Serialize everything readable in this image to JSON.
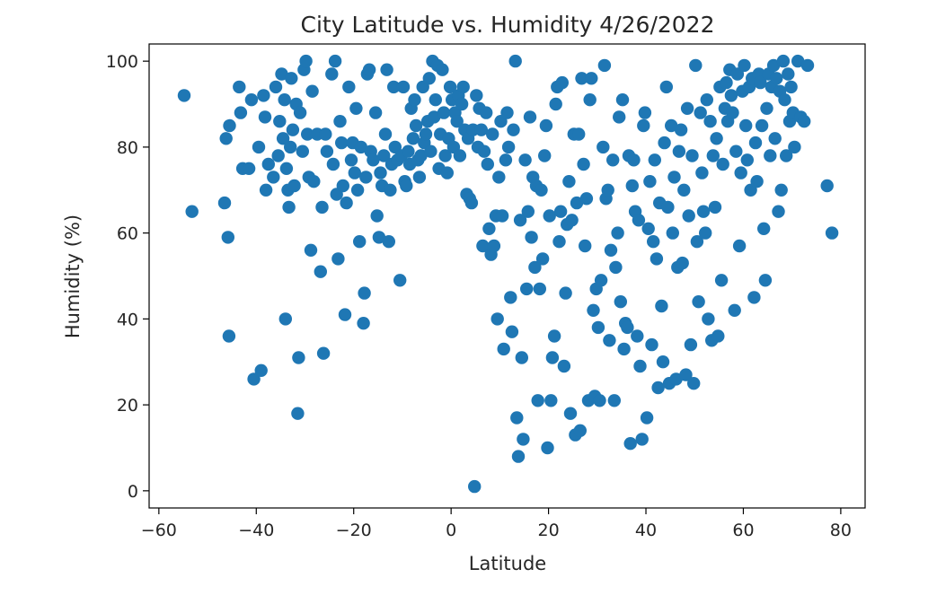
{
  "chart_data": {
    "type": "scatter",
    "title": "City Latitude vs. Humidity 4/26/2022",
    "xlabel": "Latitude",
    "ylabel": "Humidity (%)",
    "xlim": [
      -62,
      85
    ],
    "ylim": [
      -4,
      104
    ],
    "xticks": [
      -60,
      -40,
      -20,
      0,
      20,
      40,
      60,
      80
    ],
    "xtick_labels": [
      "−60",
      "−40",
      "−20",
      "0",
      "20",
      "40",
      "60",
      "80"
    ],
    "yticks": [
      0,
      20,
      40,
      60,
      80,
      100
    ],
    "ytick_labels": [
      "0",
      "20",
      "40",
      "60",
      "80",
      "100"
    ],
    "grid": false,
    "legend": "none",
    "marker_color": "#1f77b4",
    "points": [
      [
        -54.8,
        92
      ],
      [
        -53.2,
        65
      ],
      [
        -46.2,
        82
      ],
      [
        -46.5,
        67
      ],
      [
        -45.5,
        85
      ],
      [
        -45.8,
        59
      ],
      [
        -45.6,
        36
      ],
      [
        -43.5,
        94
      ],
      [
        -43.2,
        88
      ],
      [
        -42.8,
        75
      ],
      [
        -41.5,
        75
      ],
      [
        -41,
        91
      ],
      [
        -40.5,
        26
      ],
      [
        -39.5,
        80
      ],
      [
        -39,
        28
      ],
      [
        -38.5,
        92
      ],
      [
        -38.2,
        87
      ],
      [
        -38,
        70
      ],
      [
        -37.5,
        76
      ],
      [
        -36.5,
        73
      ],
      [
        -36,
        94
      ],
      [
        -35.5,
        78
      ],
      [
        -35.2,
        86
      ],
      [
        -34.8,
        97
      ],
      [
        -34.5,
        82
      ],
      [
        -34.2,
        91
      ],
      [
        -34,
        40
      ],
      [
        -33.8,
        75
      ],
      [
        -33.5,
        70
      ],
      [
        -33.3,
        66
      ],
      [
        -33,
        80
      ],
      [
        -32.8,
        96
      ],
      [
        -32.5,
        84
      ],
      [
        -32.2,
        71
      ],
      [
        -31.8,
        90
      ],
      [
        -31.5,
        18
      ],
      [
        -31.3,
        31
      ],
      [
        -31,
        88
      ],
      [
        -30.5,
        79
      ],
      [
        -30.2,
        98
      ],
      [
        -29.8,
        100
      ],
      [
        -29.5,
        83
      ],
      [
        -29.2,
        73
      ],
      [
        -28.8,
        56
      ],
      [
        -28.5,
        93
      ],
      [
        -28.2,
        72
      ],
      [
        -27.5,
        83
      ],
      [
        -26.8,
        51
      ],
      [
        -26.5,
        66
      ],
      [
        -26.2,
        32
      ],
      [
        -25.8,
        83
      ],
      [
        -25.5,
        79
      ],
      [
        -24.5,
        97
      ],
      [
        -24.2,
        76
      ],
      [
        -23.8,
        100
      ],
      [
        -23.5,
        69
      ],
      [
        -23.2,
        54
      ],
      [
        -22.8,
        86
      ],
      [
        -22.5,
        81
      ],
      [
        -22.2,
        71
      ],
      [
        -21.8,
        41
      ],
      [
        -21.5,
        67
      ],
      [
        -21,
        94
      ],
      [
        -20.5,
        77
      ],
      [
        -20.2,
        81
      ],
      [
        -19.8,
        74
      ],
      [
        -19.5,
        89
      ],
      [
        -19.2,
        70
      ],
      [
        -18.8,
        58
      ],
      [
        -18.5,
        80
      ],
      [
        -18,
        39
      ],
      [
        -17.8,
        46
      ],
      [
        -17.5,
        73
      ],
      [
        -17.2,
        97
      ],
      [
        -16.8,
        98
      ],
      [
        -16.5,
        79
      ],
      [
        -16,
        77
      ],
      [
        -15.5,
        88
      ],
      [
        -15.2,
        64
      ],
      [
        -14.8,
        59
      ],
      [
        -14.5,
        74
      ],
      [
        -14.2,
        71
      ],
      [
        -13.8,
        78
      ],
      [
        -13.5,
        83
      ],
      [
        -13.2,
        98
      ],
      [
        -12.8,
        58
      ],
      [
        -12.5,
        70
      ],
      [
        -12.2,
        76
      ],
      [
        -11.8,
        94
      ],
      [
        -11.5,
        80
      ],
      [
        -11,
        77
      ],
      [
        -10.5,
        49
      ],
      [
        -10.2,
        78
      ],
      [
        -9.8,
        94
      ],
      [
        -9.5,
        72
      ],
      [
        -9.2,
        71
      ],
      [
        -8.8,
        79
      ],
      [
        -8.5,
        76
      ],
      [
        -8.2,
        89
      ],
      [
        -7.8,
        82
      ],
      [
        -7.5,
        91
      ],
      [
        -7.2,
        85
      ],
      [
        -6.8,
        77
      ],
      [
        -6.5,
        73
      ],
      [
        -6.2,
        78
      ],
      [
        -5.8,
        94
      ],
      [
        -5.5,
        81
      ],
      [
        -5.2,
        83
      ],
      [
        -4.8,
        86
      ],
      [
        -4.5,
        96
      ],
      [
        -4.2,
        79
      ],
      [
        -3.8,
        100
      ],
      [
        -3.5,
        87
      ],
      [
        -3.2,
        91
      ],
      [
        -2.8,
        99
      ],
      [
        -2.5,
        75
      ],
      [
        -2.2,
        83
      ],
      [
        -1.8,
        98
      ],
      [
        -1.5,
        88
      ],
      [
        -1.2,
        78
      ],
      [
        -0.8,
        74
      ],
      [
        -0.5,
        82
      ],
      [
        -0.2,
        94
      ],
      [
        0.2,
        91
      ],
      [
        0.5,
        80
      ],
      [
        0.8,
        88
      ],
      [
        1.2,
        86
      ],
      [
        1.5,
        92
      ],
      [
        1.8,
        78
      ],
      [
        2.2,
        90
      ],
      [
        2.5,
        94
      ],
      [
        2.8,
        84
      ],
      [
        3.2,
        69
      ],
      [
        3.5,
        82
      ],
      [
        3.8,
        68
      ],
      [
        4.2,
        67
      ],
      [
        4.5,
        84
      ],
      [
        4.8,
        1
      ],
      [
        5.2,
        92
      ],
      [
        5.5,
        80
      ],
      [
        5.8,
        89
      ],
      [
        6.2,
        84
      ],
      [
        6.5,
        57
      ],
      [
        6.8,
        79
      ],
      [
        7.2,
        88
      ],
      [
        7.5,
        76
      ],
      [
        7.8,
        61
      ],
      [
        8.2,
        55
      ],
      [
        8.5,
        83
      ],
      [
        8.8,
        57
      ],
      [
        9.2,
        64
      ],
      [
        9.5,
        40
      ],
      [
        9.8,
        73
      ],
      [
        10.2,
        86
      ],
      [
        10.5,
        64
      ],
      [
        10.8,
        33
      ],
      [
        11.2,
        77
      ],
      [
        11.5,
        88
      ],
      [
        11.8,
        80
      ],
      [
        12.2,
        45
      ],
      [
        12.5,
        37
      ],
      [
        12.8,
        84
      ],
      [
        13.2,
        100
      ],
      [
        13.5,
        17
      ],
      [
        13.8,
        8
      ],
      [
        14.2,
        63
      ],
      [
        14.5,
        31
      ],
      [
        14.8,
        12
      ],
      [
        15.2,
        77
      ],
      [
        15.5,
        47
      ],
      [
        15.8,
        65
      ],
      [
        16.2,
        87
      ],
      [
        16.5,
        59
      ],
      [
        16.8,
        73
      ],
      [
        17.2,
        52
      ],
      [
        17.5,
        71
      ],
      [
        17.8,
        21
      ],
      [
        18.2,
        47
      ],
      [
        18.5,
        70
      ],
      [
        18.8,
        54
      ],
      [
        19.2,
        78
      ],
      [
        19.5,
        85
      ],
      [
        19.8,
        10
      ],
      [
        20.2,
        64
      ],
      [
        20.5,
        21
      ],
      [
        20.8,
        31
      ],
      [
        21.2,
        36
      ],
      [
        21.5,
        90
      ],
      [
        21.8,
        94
      ],
      [
        22.2,
        58
      ],
      [
        22.5,
        65
      ],
      [
        22.8,
        95
      ],
      [
        23.2,
        29
      ],
      [
        23.5,
        46
      ],
      [
        23.8,
        62
      ],
      [
        24.2,
        72
      ],
      [
        24.5,
        18
      ],
      [
        24.8,
        63
      ],
      [
        25.2,
        83
      ],
      [
        25.5,
        13
      ],
      [
        25.8,
        67
      ],
      [
        26.2,
        83
      ],
      [
        26.5,
        14
      ],
      [
        26.8,
        96
      ],
      [
        27.2,
        76
      ],
      [
        27.5,
        57
      ],
      [
        27.8,
        68
      ],
      [
        28.2,
        21
      ],
      [
        28.5,
        91
      ],
      [
        28.8,
        96
      ],
      [
        29.2,
        42
      ],
      [
        29.5,
        22
      ],
      [
        29.8,
        47
      ],
      [
        30.2,
        38
      ],
      [
        30.5,
        21
      ],
      [
        30.8,
        49
      ],
      [
        31.2,
        80
      ],
      [
        31.5,
        99
      ],
      [
        31.8,
        68
      ],
      [
        32.2,
        70
      ],
      [
        32.5,
        35
      ],
      [
        32.8,
        56
      ],
      [
        33.2,
        77
      ],
      [
        33.5,
        21
      ],
      [
        33.8,
        52
      ],
      [
        34.2,
        60
      ],
      [
        34.5,
        87
      ],
      [
        34.8,
        44
      ],
      [
        35.2,
        91
      ],
      [
        35.5,
        33
      ],
      [
        35.8,
        39
      ],
      [
        36.2,
        38
      ],
      [
        36.5,
        78
      ],
      [
        36.8,
        11
      ],
      [
        37.2,
        71
      ],
      [
        37.5,
        77
      ],
      [
        37.8,
        65
      ],
      [
        38.2,
        36
      ],
      [
        38.5,
        63
      ],
      [
        38.8,
        29
      ],
      [
        39.2,
        12
      ],
      [
        39.5,
        85
      ],
      [
        39.8,
        88
      ],
      [
        40.2,
        17
      ],
      [
        40.5,
        61
      ],
      [
        40.8,
        72
      ],
      [
        41.2,
        34
      ],
      [
        41.5,
        58
      ],
      [
        41.8,
        77
      ],
      [
        42.2,
        54
      ],
      [
        42.5,
        24
      ],
      [
        42.8,
        67
      ],
      [
        43.2,
        43
      ],
      [
        43.5,
        30
      ],
      [
        43.8,
        81
      ],
      [
        44.2,
        94
      ],
      [
        44.5,
        66
      ],
      [
        44.8,
        25
      ],
      [
        45.2,
        85
      ],
      [
        45.5,
        60
      ],
      [
        45.8,
        73
      ],
      [
        46.2,
        26
      ],
      [
        46.5,
        52
      ],
      [
        46.8,
        79
      ],
      [
        47.2,
        84
      ],
      [
        47.5,
        53
      ],
      [
        47.8,
        70
      ],
      [
        48.2,
        27
      ],
      [
        48.5,
        89
      ],
      [
        48.8,
        64
      ],
      [
        49.2,
        34
      ],
      [
        49.5,
        78
      ],
      [
        49.8,
        25
      ],
      [
        50.2,
        99
      ],
      [
        50.5,
        58
      ],
      [
        50.8,
        44
      ],
      [
        51.2,
        88
      ],
      [
        51.5,
        74
      ],
      [
        51.8,
        65
      ],
      [
        52.2,
        60
      ],
      [
        52.5,
        91
      ],
      [
        52.8,
        40
      ],
      [
        53.2,
        86
      ],
      [
        53.5,
        35
      ],
      [
        53.8,
        78
      ],
      [
        54.2,
        66
      ],
      [
        54.5,
        82
      ],
      [
        54.8,
        36
      ],
      [
        55.2,
        94
      ],
      [
        55.5,
        49
      ],
      [
        55.8,
        76
      ],
      [
        56.2,
        89
      ],
      [
        56.5,
        95
      ],
      [
        56.8,
        86
      ],
      [
        57.2,
        98
      ],
      [
        57.5,
        92
      ],
      [
        57.8,
        88
      ],
      [
        58.2,
        42
      ],
      [
        58.5,
        79
      ],
      [
        58.8,
        97
      ],
      [
        59.2,
        57
      ],
      [
        59.5,
        74
      ],
      [
        59.8,
        93
      ],
      [
        60.2,
        99
      ],
      [
        60.5,
        85
      ],
      [
        60.8,
        77
      ],
      [
        61.2,
        94
      ],
      [
        61.5,
        70
      ],
      [
        61.8,
        96
      ],
      [
        62.2,
        45
      ],
      [
        62.5,
        81
      ],
      [
        62.8,
        72
      ],
      [
        63.2,
        97
      ],
      [
        63.5,
        95
      ],
      [
        63.8,
        85
      ],
      [
        64.2,
        61
      ],
      [
        64.5,
        49
      ],
      [
        64.8,
        89
      ],
      [
        65.2,
        97
      ],
      [
        65.5,
        78
      ],
      [
        65.8,
        94
      ],
      [
        66.2,
        99
      ],
      [
        66.5,
        82
      ],
      [
        66.8,
        96
      ],
      [
        67.2,
        65
      ],
      [
        67.5,
        93
      ],
      [
        67.8,
        70
      ],
      [
        68.2,
        100
      ],
      [
        68.5,
        91
      ],
      [
        68.8,
        78
      ],
      [
        69.2,
        97
      ],
      [
        69.5,
        86
      ],
      [
        69.8,
        94
      ],
      [
        70.2,
        88
      ],
      [
        70.5,
        80
      ],
      [
        71.2,
        100
      ],
      [
        71.8,
        87
      ],
      [
        72.5,
        86
      ],
      [
        73.2,
        99
      ],
      [
        77.2,
        71
      ],
      [
        78.2,
        60
      ]
    ]
  }
}
